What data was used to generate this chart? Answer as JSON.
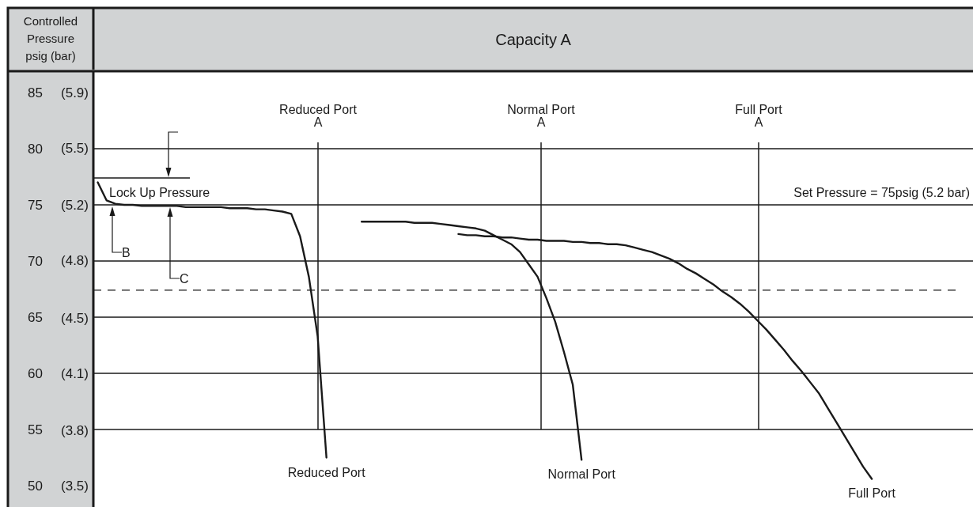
{
  "chart_data": {
    "type": "line",
    "xlabel": "Capacity A",
    "ylabel": "Controlled Pressure psig (bar)",
    "categories": [
      null,
      null,
      null,
      null,
      null,
      null,
      null,
      null,
      null,
      null,
      null,
      null,
      null,
      null,
      null,
      null,
      null,
      null,
      null,
      null,
      null,
      null,
      null,
      null,
      null,
      null,
      null,
      null,
      null,
      null,
      null,
      null,
      null,
      null,
      null,
      null,
      null,
      null,
      null,
      null,
      null,
      null,
      null,
      null,
      null,
      null,
      null,
      null,
      null,
      null,
      null,
      null,
      null,
      null,
      null,
      null,
      null,
      null,
      null,
      null,
      null,
      null,
      null,
      null,
      null,
      null,
      null,
      null,
      null,
      null,
      null,
      null,
      null,
      null,
      null,
      null,
      null,
      null,
      null,
      null,
      null,
      null,
      null,
      null,
      null,
      null,
      null,
      null,
      null,
      null,
      null,
      null,
      null,
      null,
      null,
      null,
      null,
      null,
      null,
      null
    ],
    "ylim": [
      48.1,
      86.9
    ],
    "yticks": [
      85,
      80,
      75,
      70,
      65,
      60,
      55,
      50
    ],
    "y2lim": [
      3.32,
      5.99
    ],
    "y2ticks": [
      {
        "value": 5.86,
        "label": "(5.9)"
      },
      {
        "value": 5.52,
        "label": "(5.5)"
      },
      {
        "value": 5.17,
        "label": "(5.2)"
      },
      {
        "value": 4.83,
        "label": "(4.8)"
      },
      {
        "value": 4.48,
        "label": "(4.5)"
      },
      {
        "value": 4.14,
        "label": "(4.1)"
      },
      {
        "value": 3.79,
        "label": "(3.8)"
      },
      {
        "value": 3.45,
        "label": "(3.5)"
      }
    ],
    "tick_labels": "y",
    "grid": "y",
    "marker": "none",
    "line_style": "solid",
    "series": [
      {
        "name": "Reduced Port",
        "color": "#1a1a1a",
        "values": [
          77.0,
          75.4,
          75.1,
          75.0,
          75.0,
          74.9,
          74.9,
          74.9,
          74.9,
          74.9,
          74.8,
          74.8,
          74.8,
          74.8,
          74.8,
          74.7,
          74.7,
          74.7,
          74.6,
          74.6,
          74.5,
          74.4,
          74.2,
          72.2,
          68.6,
          63.3,
          52.5,
          null,
          null,
          null,
          null,
          null,
          null,
          null,
          null,
          null,
          null,
          null,
          null,
          null,
          null,
          null,
          null,
          null,
          null,
          null,
          null,
          null,
          null,
          null,
          null,
          null,
          null,
          null,
          null,
          null,
          null,
          null,
          null,
          null,
          null,
          null,
          null,
          null,
          null,
          null,
          null,
          null,
          null,
          null,
          null,
          null,
          null,
          null,
          null,
          null,
          null,
          null,
          null,
          null,
          null,
          null,
          null,
          null,
          null,
          null,
          null,
          null,
          null,
          null,
          null,
          null,
          null,
          null,
          null,
          null,
          null,
          null,
          null,
          null
        ]
      },
      {
        "name": "Normal Port",
        "color": "#1a1a1a",
        "values": [
          null,
          null,
          null,
          null,
          null,
          null,
          null,
          null,
          null,
          null,
          null,
          null,
          null,
          null,
          null,
          null,
          null,
          null,
          null,
          null,
          null,
          null,
          null,
          null,
          null,
          null,
          null,
          null,
          null,
          null,
          73.5,
          73.5,
          73.5,
          73.5,
          73.5,
          73.5,
          73.4,
          73.4,
          73.4,
          73.3,
          73.2,
          73.1,
          73.0,
          72.9,
          72.7,
          72.3,
          71.9,
          71.5,
          70.8,
          69.7,
          68.6,
          66.7,
          64.6,
          61.9,
          59.0,
          52.3,
          null,
          null,
          null,
          null,
          null,
          null,
          null,
          null,
          null,
          null,
          null,
          null,
          null,
          null,
          null,
          null,
          null,
          null,
          null,
          null,
          null,
          null,
          null,
          null,
          null,
          null,
          null,
          null,
          null,
          null,
          null,
          null,
          null,
          null,
          null,
          null,
          null,
          null,
          null,
          null,
          null,
          null,
          null,
          null
        ]
      },
      {
        "name": "Full Port",
        "color": "#1a1a1a",
        "values": [
          null,
          null,
          null,
          null,
          null,
          null,
          null,
          null,
          null,
          null,
          null,
          null,
          null,
          null,
          null,
          null,
          null,
          null,
          null,
          null,
          null,
          null,
          null,
          null,
          null,
          null,
          null,
          null,
          null,
          null,
          null,
          null,
          null,
          null,
          null,
          null,
          null,
          null,
          null,
          null,
          null,
          72.4,
          72.3,
          72.3,
          72.2,
          72.2,
          72.1,
          72.1,
          72.0,
          71.9,
          71.9,
          71.8,
          71.8,
          71.8,
          71.7,
          71.7,
          71.6,
          71.6,
          71.5,
          71.5,
          71.4,
          71.2,
          71.0,
          70.8,
          70.5,
          70.2,
          69.8,
          69.3,
          68.9,
          68.4,
          67.9,
          67.3,
          66.8,
          66.2,
          65.5,
          64.7,
          63.9,
          63.0,
          62.1,
          61.1,
          60.2,
          59.2,
          58.2,
          56.9,
          55.6,
          54.3,
          53.0,
          51.7,
          50.6,
          null,
          null,
          null,
          null,
          null,
          null,
          null,
          null,
          null,
          null,
          null
        ]
      }
    ],
    "ref_lines": [
      {
        "axis": "y",
        "value": 67.4,
        "color": "#1a1a1a",
        "line_style": "dashed"
      }
    ],
    "annotations": [
      "Reduced Port A",
      "Normal Port A",
      "Full Port A",
      "Lock Up Pressure",
      "B",
      "C",
      "Set Pressure = 75psig (5.2 bar)"
    ]
  }
}
